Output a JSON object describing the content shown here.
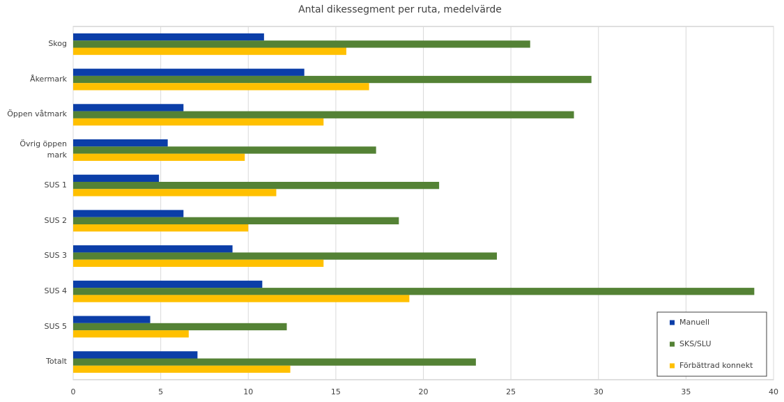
{
  "chart_data": {
    "type": "hbar",
    "title": "Antal dikessegment per ruta, medelvärde",
    "categories": [
      "Skog",
      "Åkermark",
      "Öppen våtmark",
      "Övrig öppen mark",
      "SUS 1",
      "SUS 2",
      "SUS 3",
      "SUS 4",
      "SUS 5",
      "Totalt"
    ],
    "series": [
      {
        "name": "Manuell",
        "color": "#0b3ea8",
        "values": [
          10.9,
          13.2,
          6.3,
          5.4,
          4.9,
          6.3,
          9.1,
          10.8,
          4.4,
          7.1
        ]
      },
      {
        "name": "SKS/SLU",
        "color": "#548235",
        "values": [
          26.1,
          29.6,
          28.6,
          17.3,
          20.9,
          18.6,
          24.2,
          38.9,
          12.2,
          23.0
        ]
      },
      {
        "name": "Förbättrad konnekt",
        "color": "#ffc000",
        "values": [
          15.6,
          16.9,
          14.3,
          9.8,
          11.6,
          10.0,
          14.3,
          19.2,
          6.6,
          12.4
        ]
      }
    ],
    "xlim": [
      0,
      40
    ],
    "xticks": [
      0,
      5,
      10,
      15,
      20,
      25,
      30,
      35,
      40
    ],
    "grid": true,
    "legend": "lower right"
  }
}
